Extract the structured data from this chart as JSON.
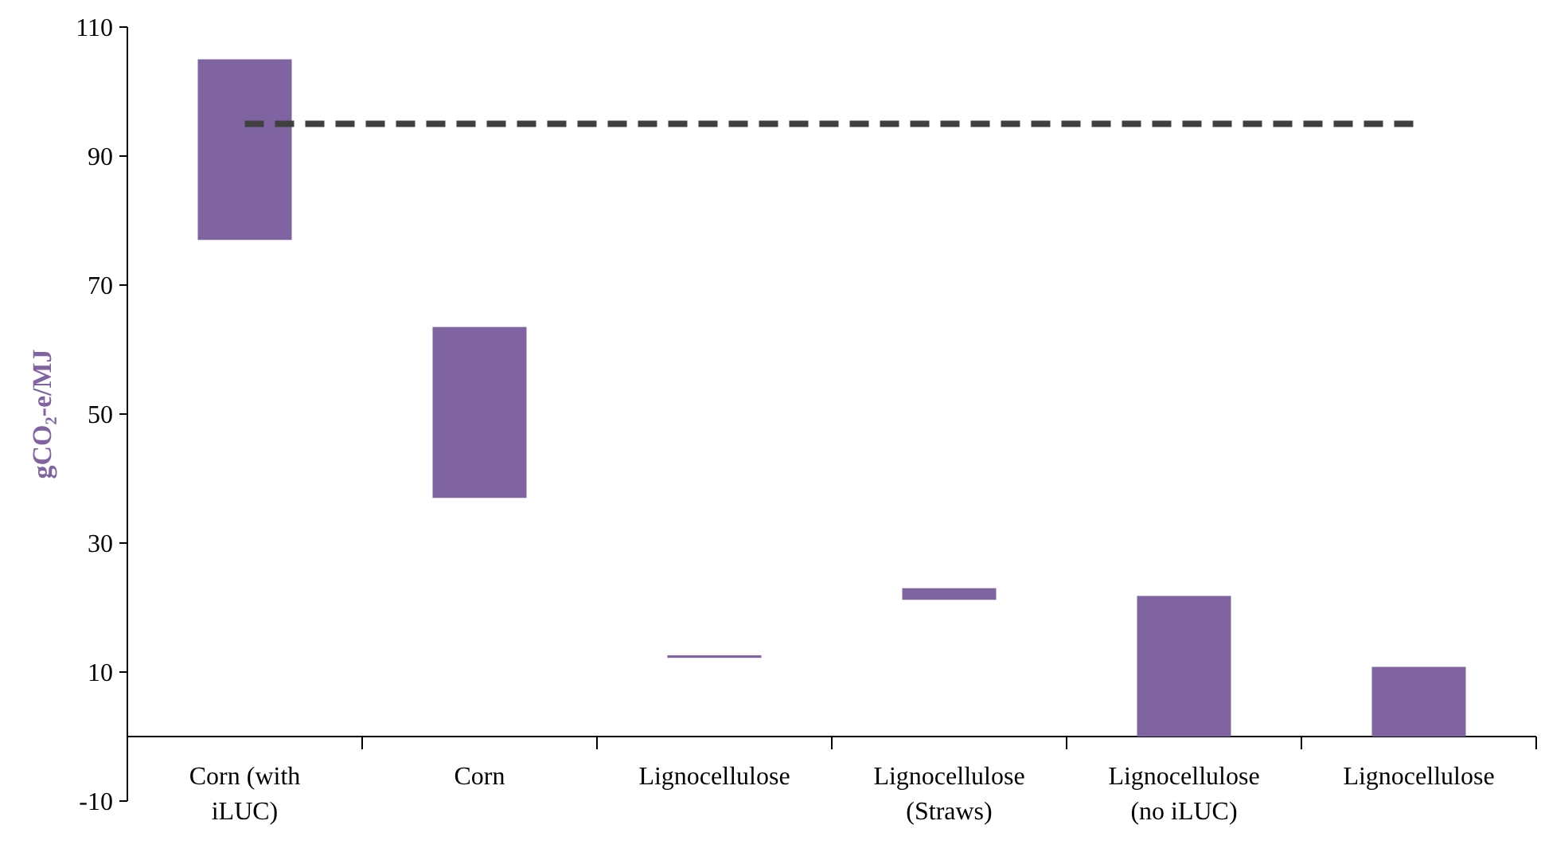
{
  "chart_data": {
    "type": "bar",
    "ylabel": "gCO₂-e/MJ",
    "categories": [
      "Corn (with iLUC)",
      "Corn",
      "Lignocellulose",
      "Lignocellulose (Straws)",
      "Lignocellulose (no iLUC)",
      "Lignocellulose"
    ],
    "base": [
      77,
      37,
      12.2,
      21.2,
      0,
      0
    ],
    "values": [
      28,
      26.5,
      0.4,
      1.8,
      21.8,
      10.8
    ],
    "color": "#8064a2",
    "ylim": [
      -10,
      110
    ],
    "yticks": [
      -10,
      10,
      30,
      50,
      70,
      90,
      110
    ],
    "ref_lines": [
      {
        "axis": "y",
        "value": 95,
        "color": "#404040",
        "line_style": "dashed"
      }
    ],
    "grid": false
  }
}
